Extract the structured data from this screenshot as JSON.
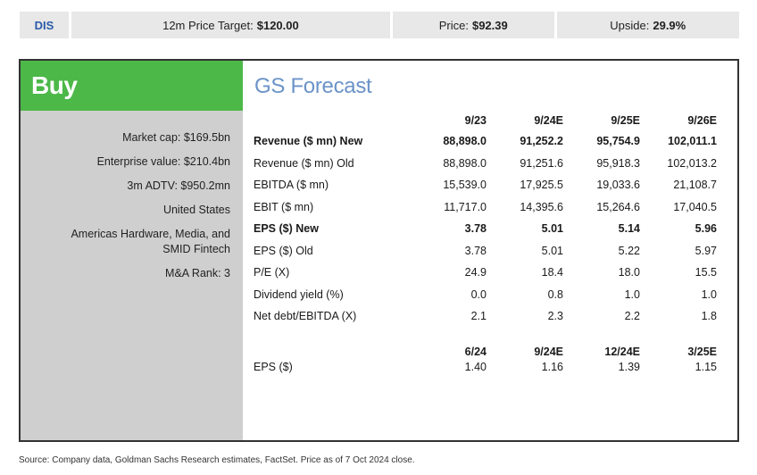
{
  "header": {
    "ticker": "DIS",
    "target_label": "12m Price Target:",
    "target_value": "$120.00",
    "price_label": "Price:",
    "price_value": "$92.39",
    "upside_label": "Upside:",
    "upside_value": "29.9%"
  },
  "rating": "Buy",
  "stats": [
    "Market cap: $169.5bn",
    "Enterprise value: $210.4bn",
    "3m ADTV: $950.2mn",
    "United States",
    "Americas Hardware, Media, and SMID Fintech",
    "M&A Rank: 3"
  ],
  "forecast": {
    "title": "GS Forecast",
    "columns": [
      "9/23",
      "9/24E",
      "9/25E",
      "9/26E"
    ],
    "rows": [
      {
        "label": "Revenue ($ mn) New",
        "values": [
          "88,898.0",
          "91,252.2",
          "95,754.9",
          "102,011.1"
        ],
        "bold": true
      },
      {
        "label": "Revenue ($ mn) Old",
        "values": [
          "88,898.0",
          "91,251.6",
          "95,918.3",
          "102,013.2"
        ],
        "bold": false
      },
      {
        "label": "EBITDA ($ mn)",
        "values": [
          "15,539.0",
          "17,925.5",
          "19,033.6",
          "21,108.7"
        ],
        "bold": false
      },
      {
        "label": "EBIT ($ mn)",
        "values": [
          "11,717.0",
          "14,395.6",
          "15,264.6",
          "17,040.5"
        ],
        "bold": false
      },
      {
        "label": "EPS ($) New",
        "values": [
          "3.78",
          "5.01",
          "5.14",
          "5.96"
        ],
        "bold": true
      },
      {
        "label": "EPS ($) Old",
        "values": [
          "3.78",
          "5.01",
          "5.22",
          "5.97"
        ],
        "bold": false
      },
      {
        "label": "P/E (X)",
        "values": [
          "24.9",
          "18.4",
          "18.0",
          "15.5"
        ],
        "bold": false
      },
      {
        "label": "Dividend yield (%)",
        "values": [
          "0.0",
          "0.8",
          "1.0",
          "1.0"
        ],
        "bold": false
      },
      {
        "label": "Net debt/EBITDA (X)",
        "values": [
          "2.1",
          "2.3",
          "2.2",
          "1.8"
        ],
        "bold": false
      }
    ]
  },
  "quarterly": {
    "columns": [
      "6/24",
      "9/24E",
      "12/24E",
      "3/25E"
    ],
    "label": "EPS ($)",
    "values": [
      "1.40",
      "1.16",
      "1.39",
      "1.15"
    ]
  },
  "source": "Source: Company data, Goldman Sachs Research estimates, FactSet. Price as of 7 Oct 2024 close.",
  "colors": {
    "buy_green": "#4cb848",
    "title_blue": "#6b93c8",
    "ticker_blue": "#2b5ba8",
    "panel_gray": "#cfcfcf",
    "header_gray": "#e8e8e8"
  }
}
